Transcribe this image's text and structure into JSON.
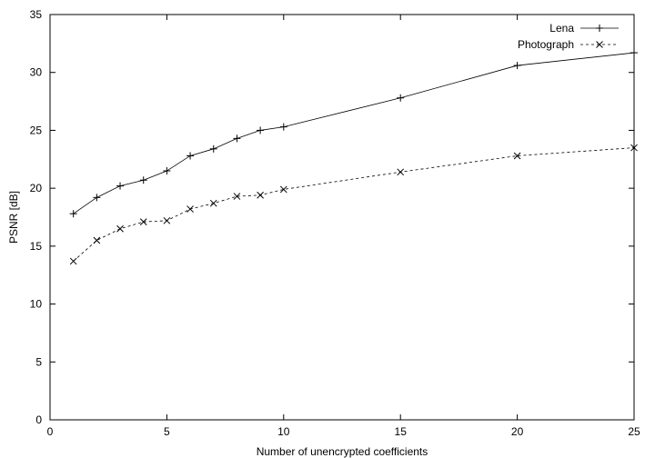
{
  "chart_data": {
    "type": "line",
    "title": "",
    "xlabel": "Number of unencrypted coefficients",
    "ylabel": "PSNR [dB]",
    "xlim": [
      0,
      25
    ],
    "ylim": [
      0,
      35
    ],
    "x_ticks": [
      0,
      5,
      10,
      15,
      20,
      25
    ],
    "y_ticks": [
      0,
      5,
      10,
      15,
      20,
      25,
      30,
      35
    ],
    "grid": false,
    "legend_position": "top-right",
    "x": [
      1,
      2,
      3,
      4,
      5,
      6,
      7,
      8,
      9,
      10,
      15,
      20,
      25
    ],
    "series": [
      {
        "name": "Lena",
        "marker": "plus",
        "line_style": "solid",
        "color": "#000000",
        "values": [
          17.8,
          19.2,
          20.2,
          20.7,
          21.5,
          22.8,
          23.4,
          24.3,
          25.0,
          25.3,
          27.8,
          30.6,
          31.7
        ]
      },
      {
        "name": "Photograph",
        "marker": "cross",
        "line_style": "dashed",
        "color": "#000000",
        "values": [
          13.7,
          15.5,
          16.5,
          17.1,
          17.2,
          18.2,
          18.7,
          19.3,
          19.4,
          19.9,
          21.4,
          22.8,
          23.5
        ]
      }
    ]
  }
}
